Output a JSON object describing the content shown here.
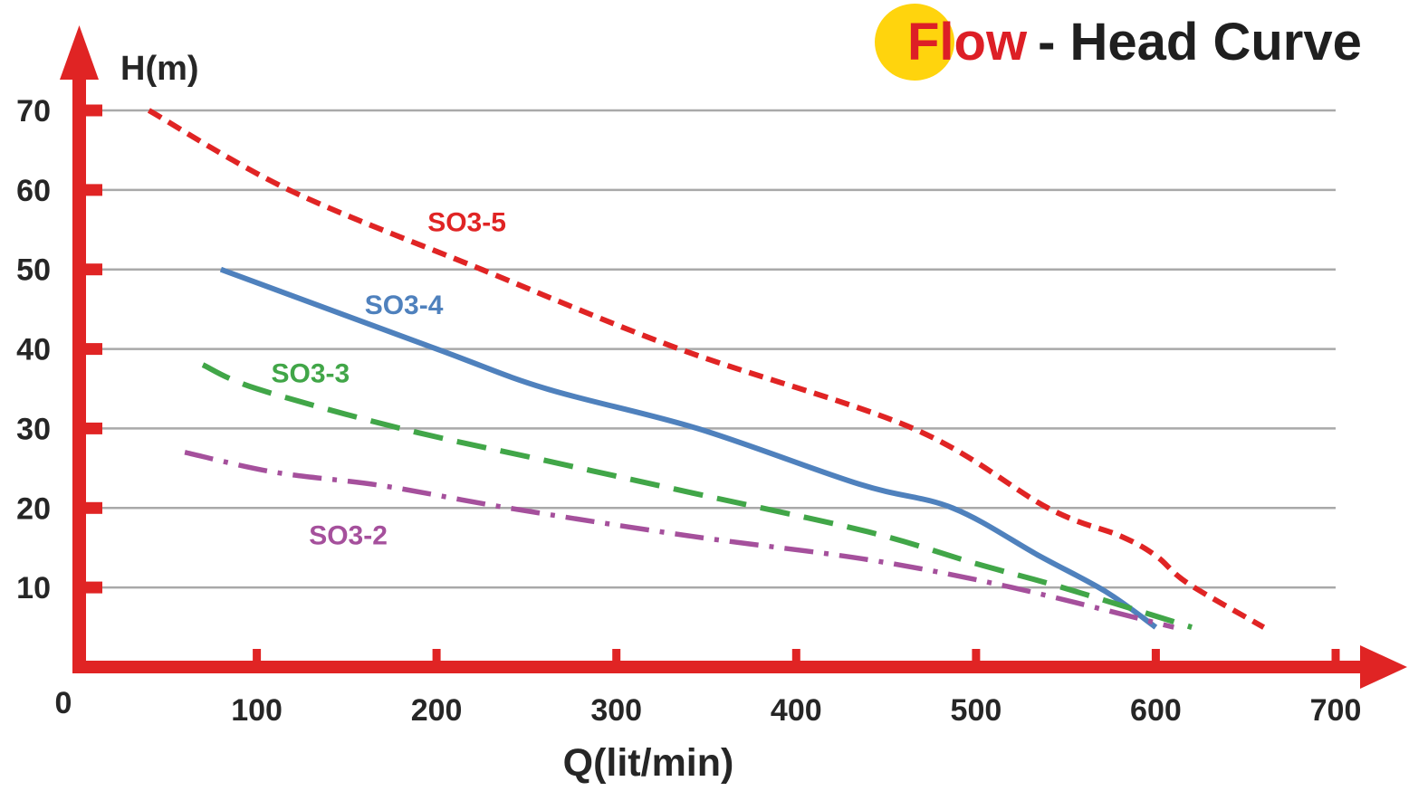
{
  "title": {
    "highlight": "Flow",
    "rest": "- Head Curve",
    "highlight_color": "#dd1f26",
    "rest_color": "#1f1f1f",
    "circle_color": "#ffd40d"
  },
  "colors": {
    "axis_red": "#e02424",
    "gridline_gray": "#a9a9a9",
    "tick_text": "#262626",
    "background": "#ffffff"
  },
  "chart_data": {
    "type": "line",
    "title": "Flow - Head Curve",
    "xlabel": "Q(lit/min)",
    "ylabel": "H(m)",
    "xlim": [
      0,
      700
    ],
    "ylim": [
      0,
      75
    ],
    "xticks": [
      0,
      100,
      200,
      300,
      400,
      500,
      600,
      700
    ],
    "yticks": [
      10,
      20,
      30,
      40,
      50,
      60,
      70
    ],
    "grid": true,
    "legend_position": "inline-labels",
    "series": [
      {
        "name": "SO3-5",
        "color": "#e02424",
        "line_style": "short-dash",
        "label_pos": [
          195,
          54.8
        ],
        "points": [
          [
            40,
            70
          ],
          [
            118,
            60
          ],
          [
            225,
            50
          ],
          [
            335,
            40
          ],
          [
            465,
            30
          ],
          [
            540,
            20
          ],
          [
            580,
            16.5
          ],
          [
            600,
            14
          ],
          [
            618,
            10.5
          ],
          [
            660,
            5
          ]
        ]
      },
      {
        "name": "SO3-4",
        "color": "#4f81bd",
        "line_style": "solid",
        "label_pos": [
          160,
          44.4
        ],
        "points": [
          [
            80,
            50
          ],
          [
            200,
            40
          ],
          [
            261,
            35
          ],
          [
            345,
            30
          ],
          [
            435,
            23
          ],
          [
            487,
            20
          ],
          [
            535,
            14
          ],
          [
            572,
            9.5
          ],
          [
            600,
            5
          ]
        ]
      },
      {
        "name": "SO3-3",
        "color": "#41a648",
        "line_style": "long-dash",
        "label_pos": [
          108,
          35.8
        ],
        "points": [
          [
            70,
            38
          ],
          [
            100,
            35
          ],
          [
            180,
            30
          ],
          [
            260,
            26
          ],
          [
            340,
            22
          ],
          [
            440,
            17
          ],
          [
            500,
            13
          ],
          [
            548,
            10
          ],
          [
            620,
            5
          ]
        ]
      },
      {
        "name": "SO3-2",
        "color": "#a5509c",
        "line_style": "dash-dot",
        "label_pos": [
          129,
          15.4
        ],
        "points": [
          [
            60,
            27
          ],
          [
            110,
            24.5
          ],
          [
            170,
            22.8
          ],
          [
            240,
            20
          ],
          [
            340,
            16.5
          ],
          [
            440,
            13.5
          ],
          [
            520,
            10
          ],
          [
            610,
            5
          ]
        ]
      }
    ]
  }
}
